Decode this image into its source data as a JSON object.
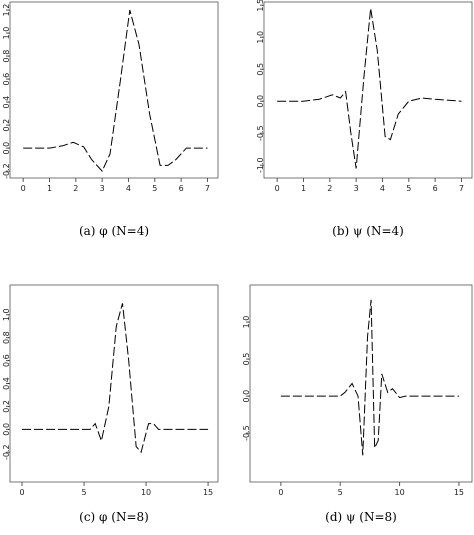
{
  "chart_data": [
    {
      "type": "line",
      "caption": "(a) φ (N=4)",
      "xlim": [
        -0.5,
        7.4
      ],
      "ylim": [
        -0.26,
        1.27
      ],
      "xticks": [
        0,
        1,
        2,
        3,
        4,
        5,
        6,
        7
      ],
      "yticks": [
        -0.2,
        {
          "value": 0,
          "label": "0.0"
        },
        0.2,
        0.4,
        0.6,
        0.8,
        {
          "value": 1,
          "label": "1.0"
        },
        1.2
      ],
      "series": [
        {
          "color": "#000000",
          "x": [
            0,
            1,
            1.5,
            1.9,
            2.3,
            2.6,
            3.0,
            3.3,
            3.7,
            4.05,
            4.4,
            4.8,
            5.2,
            5.5,
            5.8,
            6.2,
            7
          ],
          "values": [
            0,
            0,
            0.02,
            0.05,
            0.01,
            -0.1,
            -0.2,
            -0.05,
            0.6,
            1.2,
            0.9,
            0.3,
            -0.15,
            -0.15,
            -0.1,
            0,
            0
          ]
        }
      ]
    },
    {
      "type": "line",
      "caption": "(b) ψ (N=4)",
      "xlim": [
        -0.5,
        7.4
      ],
      "ylim": [
        -1.2,
        1.55
      ],
      "xticks": [
        0,
        1,
        2,
        3,
        4,
        5,
        6,
        7
      ],
      "yticks": [
        {
          "value": -1,
          "label": "-1.0"
        },
        -0.5,
        {
          "value": 0,
          "label": "0.0"
        },
        0.5,
        {
          "value": 1,
          "label": "1.0"
        },
        1.5
      ],
      "series": [
        {
          "color": "#000000",
          "x": [
            0,
            1,
            1.6,
            2.1,
            2.4,
            2.6,
            2.8,
            3.0,
            3.3,
            3.55,
            3.8,
            4.1,
            4.3,
            4.6,
            5.0,
            5.5,
            6,
            7
          ],
          "values": [
            0,
            0,
            0.03,
            0.1,
            0.05,
            0.15,
            -0.5,
            -1.05,
            0.4,
            1.45,
            0.8,
            -0.55,
            -0.6,
            -0.2,
            0,
            0.05,
            0.03,
            0
          ]
        }
      ]
    },
    {
      "type": "line",
      "caption": "(c) φ (N=8)",
      "xlim": [
        -0.97,
        15.8
      ],
      "ylim": [
        -0.46,
        1.26
      ],
      "xticks": [
        0,
        5,
        10,
        15
      ],
      "yticks": [
        -0.2,
        {
          "value": 0,
          "label": "0.0"
        },
        0.2,
        0.4,
        0.6,
        0.8,
        {
          "value": 1,
          "label": "1.0"
        }
      ],
      "series": [
        {
          "color": "#000000",
          "x": [
            0,
            4.5,
            5.5,
            5.9,
            6.4,
            7,
            7.6,
            8.1,
            8.6,
            9.2,
            9.6,
            10.2,
            10.6,
            11,
            15
          ],
          "values": [
            0,
            0,
            0,
            0.05,
            -0.1,
            0.2,
            0.9,
            1.1,
            0.6,
            -0.15,
            -0.2,
            0.05,
            0.05,
            0,
            0
          ]
        }
      ]
    },
    {
      "type": "line",
      "caption": "(d) ψ (N=8)",
      "xlim": [
        -2.6,
        16.1
      ],
      "ylim": [
        -1.16,
        1.5
      ],
      "xticks": [
        0,
        5,
        10,
        15
      ],
      "yticks": [
        -0.5,
        {
          "value": 0,
          "label": "0.0"
        },
        0.5,
        {
          "value": 1,
          "label": "1.0"
        }
      ],
      "series": [
        {
          "color": "#000000",
          "x": [
            0,
            5,
            5.4,
            6,
            6.5,
            6.9,
            7.3,
            7.6,
            7.9,
            8.2,
            8.5,
            9,
            9.4,
            10,
            10.5,
            15
          ],
          "values": [
            0,
            0,
            0.05,
            0.17,
            0,
            -0.8,
            0.8,
            1.3,
            -0.7,
            -0.6,
            0.3,
            0.05,
            0.1,
            -0.02,
            0,
            0
          ]
        }
      ]
    }
  ]
}
